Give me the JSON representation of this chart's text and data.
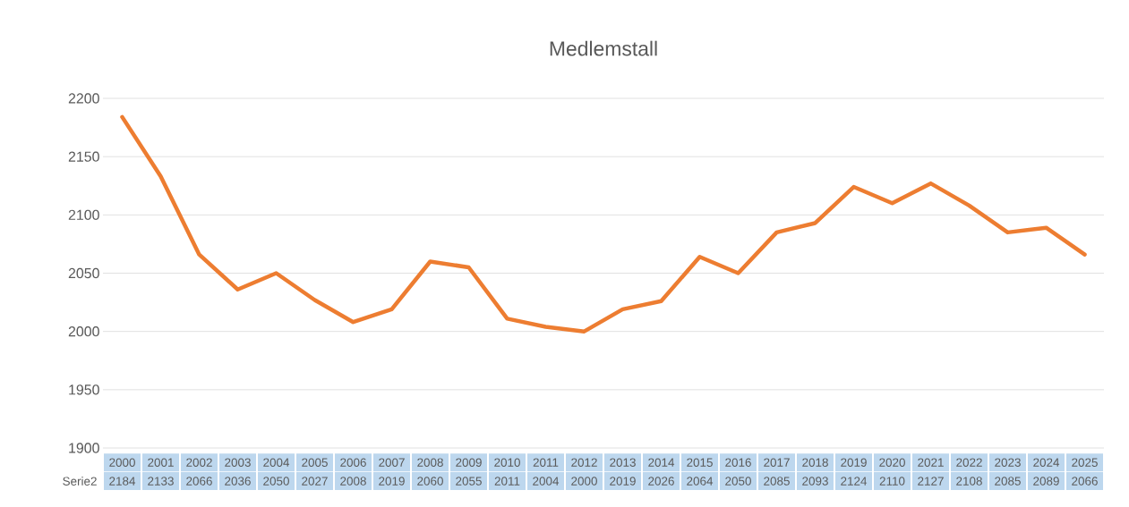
{
  "chart_data": {
    "type": "line",
    "title": "Medlemstall",
    "categories": [
      "2000",
      "2001",
      "2002",
      "2003",
      "2004",
      "2005",
      "2006",
      "2007",
      "2008",
      "2009",
      "2010",
      "2011",
      "2012",
      "2013",
      "2014",
      "2015",
      "2016",
      "2017",
      "2018",
      "2019",
      "2020",
      "2021",
      "2022",
      "2023",
      "2024",
      "2025"
    ],
    "series": [
      {
        "name": "Serie2",
        "color": "#ed7d31",
        "values": [
          2184,
          2133,
          2066,
          2036,
          2050,
          2027,
          2008,
          2019,
          2060,
          2055,
          2011,
          2004,
          2000,
          2019,
          2026,
          2064,
          2050,
          2085,
          2093,
          2124,
          2110,
          2127,
          2108,
          2085,
          2089,
          2066
        ]
      }
    ],
    "ylim": [
      1900,
      2200
    ],
    "yticks": [
      1900,
      1950,
      2000,
      2050,
      2100,
      2150,
      2200
    ],
    "grid": "y",
    "marker": "none",
    "line_style": "solid",
    "data_labels": true
  }
}
